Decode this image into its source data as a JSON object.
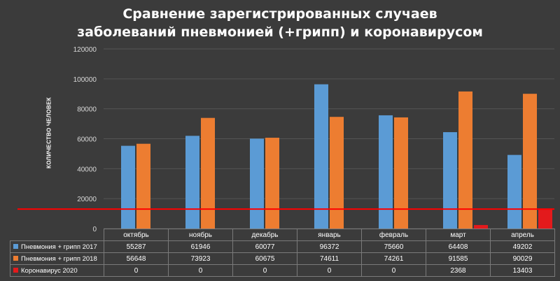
{
  "title_line1": "Сравнение зарегистрированных случаев",
  "title_line2": "заболеваний пневмонией (+грипп) и коронавирусом",
  "chart_data": {
    "type": "bar",
    "title": "Сравнение зарегистрированных случаев заболеваний пневмонией (+грипп) и коронавирусом",
    "ylabel": "КОЛИЧЕСТВО ЧЕЛОВЕК",
    "xlabel": "",
    "ylim": [
      0,
      120000
    ],
    "yticks": [
      0,
      20000,
      40000,
      60000,
      80000,
      100000,
      120000
    ],
    "grid": true,
    "legend": "data-table",
    "categories": [
      "октябрь",
      "ноябрь",
      "декабрь",
      "январь",
      "февраль",
      "март",
      "апрель"
    ],
    "series": [
      {
        "name": "Пневмония + грипп 2017",
        "color": "#5b9bd5",
        "values": [
          55287,
          61946,
          60077,
          96372,
          75660,
          64408,
          49202
        ]
      },
      {
        "name": "Пневмония + грипп 2018",
        "color": "#ed7d31",
        "values": [
          56648,
          73923,
          60675,
          74611,
          74261,
          91585,
          90029
        ]
      },
      {
        "name": "Коронавирус 2020",
        "color": "#e31a1c",
        "values": [
          0,
          0,
          0,
          0,
          0,
          2368,
          13403
        ]
      }
    ],
    "reference_line": {
      "value": 13000,
      "color": "#ff0000"
    }
  }
}
